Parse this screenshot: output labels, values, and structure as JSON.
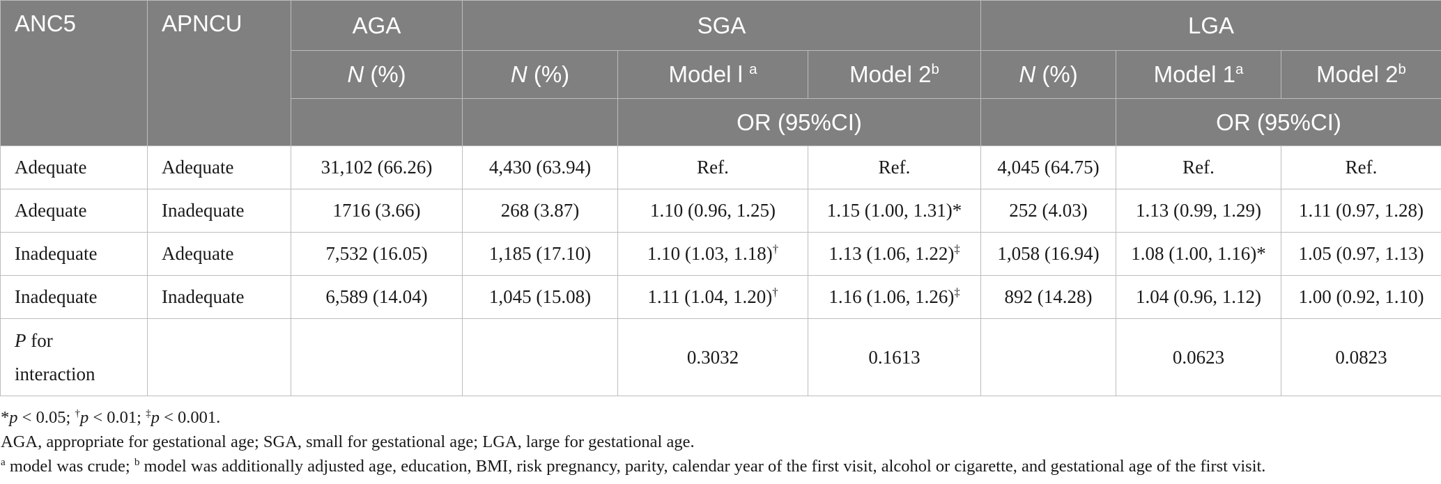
{
  "header": {
    "anc5": "ANC5",
    "apncu": "APNCU",
    "aga": "AGA",
    "sga": "SGA",
    "lga": "LGA",
    "n_italic": "N",
    "n_pct": " (%)",
    "model1_sga": "Model l",
    "model1_sga_sup": "a",
    "model2": "Model 2",
    "model2_sup": "b",
    "model1_lga": "Model 1",
    "model1_lga_sup": "a",
    "or_ci": "OR (95%CI)"
  },
  "rows": [
    {
      "anc5": "Adequate",
      "apncu": "Adequate",
      "aga_n": "31,102 (66.26)",
      "sga_n": "4,430 (63.94)",
      "sga_m1": "Ref.",
      "sga_m1_sup": "",
      "sga_m2": "Ref.",
      "sga_m2_sup": "",
      "lga_n": "4,045 (64.75)",
      "lga_m1": "Ref.",
      "lga_m1_sup": "",
      "lga_m2": "Ref.",
      "lga_m2_sup": ""
    },
    {
      "anc5": "Adequate",
      "apncu": "Inadequate",
      "aga_n": "1716 (3.66)",
      "sga_n": "268 (3.87)",
      "sga_m1": "1.10 (0.96, 1.25)",
      "sga_m1_sup": "",
      "sga_m2": "1.15 (1.00, 1.31)*",
      "sga_m2_sup": "",
      "lga_n": "252 (4.03)",
      "lga_m1": "1.13 (0.99, 1.29)",
      "lga_m1_sup": "",
      "lga_m2": "1.11 (0.97, 1.28)",
      "lga_m2_sup": ""
    },
    {
      "anc5": "Inadequate",
      "apncu": "Adequate",
      "aga_n": "7,532 (16.05)",
      "sga_n": "1,185 (17.10)",
      "sga_m1": "1.10 (1.03, 1.18)",
      "sga_m1_sup": "†",
      "sga_m2": "1.13 (1.06, 1.22)",
      "sga_m2_sup": "‡",
      "lga_n": "1,058 (16.94)",
      "lga_m1": "1.08 (1.00, 1.16)*",
      "lga_m1_sup": "",
      "lga_m2": "1.05 (0.97, 1.13)",
      "lga_m2_sup": ""
    },
    {
      "anc5": "Inadequate",
      "apncu": "Inadequate",
      "aga_n": "6,589 (14.04)",
      "sga_n": "1,045 (15.08)",
      "sga_m1": "1.11 (1.04, 1.20)",
      "sga_m1_sup": "†",
      "sga_m2": "1.16 (1.06, 1.26)",
      "sga_m2_sup": "‡",
      "lga_n": "892 (14.28)",
      "lga_m1": "1.04 (0.96, 1.12)",
      "lga_m1_sup": "",
      "lga_m2": "1.00 (0.92, 1.10)",
      "lga_m2_sup": ""
    }
  ],
  "interaction": {
    "label_p": "P",
    "label_rest1": " for",
    "label_rest2": "interaction",
    "sga_m1": "0.3032",
    "sga_m2": "0.1613",
    "lga_m1": "0.0623",
    "lga_m2": "0.0823"
  },
  "notes": {
    "n1": {
      "s1": "*",
      "p1": "p",
      "t1": " < 0.05; ",
      "s2": "†",
      "p2": "p",
      "t2": " < 0.01; ",
      "s3": "‡",
      "p3": "p",
      "t3": " < 0.001."
    },
    "n2": "AGA, appropriate for gestational age; SGA, small for gestational age; LGA, large for gestational age.",
    "n3": {
      "sa": "a",
      "ta": " model was crude; ",
      "sb": "b",
      "tb": " model was additionally adjusted age, education, BMI, risk pregnancy, parity, calendar year of the first visit, alcohol or cigarette, and gestational age of the first visit."
    }
  }
}
